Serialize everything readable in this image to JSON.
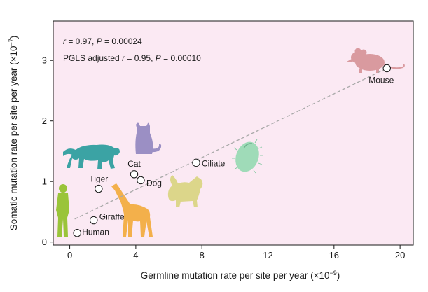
{
  "chart_data": {
    "type": "scatter",
    "title": "",
    "xlabel": "Germline mutation rate per site per year (×10",
    "xlabel_exp": "−9",
    "ylabel": "Somatic mutation rate per site per year (×10",
    "ylabel_exp": "−7",
    "xlim": [
      -1,
      20.8
    ],
    "ylim": [
      -0.05,
      3.65
    ],
    "xticks": [
      0,
      4,
      8,
      12,
      16,
      20
    ],
    "yticks": [
      0,
      1,
      2,
      3
    ],
    "xtick_labels": [
      "0",
      "4",
      "8",
      "12",
      "16",
      "20"
    ],
    "ytick_labels": [
      "0",
      "1",
      "2",
      "3"
    ],
    "points": [
      {
        "name": "Human",
        "x": 0.45,
        "y": 0.15
      },
      {
        "name": "Giraffe",
        "x": 1.45,
        "y": 0.36
      },
      {
        "name": "Tiger",
        "x": 1.75,
        "y": 0.88
      },
      {
        "name": "Cat",
        "x": 3.9,
        "y": 1.12
      },
      {
        "name": "Dog",
        "x": 4.3,
        "y": 1.02
      },
      {
        "name": "Ciliate",
        "x": 7.65,
        "y": 1.31
      },
      {
        "name": "Mouse",
        "x": 19.2,
        "y": 2.87
      }
    ],
    "fit_line": {
      "x": [
        0.3,
        19.2
      ],
      "y": [
        0.38,
        2.87
      ]
    },
    "stats": {
      "line1": {
        "r_label": "r",
        "r_rest": " = 0.97,  ",
        "p_label": "P",
        "p_rest": " = 0.00024"
      },
      "line2": {
        "prefix": "PGLS adjusted ",
        "r_label": "r",
        "r_rest": " = 0.95,  ",
        "p_label": "P",
        "p_rest": " = 0.00010"
      }
    },
    "colors": {
      "background": "#fbe9f3",
      "fit_line": "#a9a9a9",
      "mouse": "#d99a9f",
      "cat": "#9b8fc4",
      "tiger": "#3ba3a4",
      "human": "#9ac43a",
      "giraffe": "#f3b04b",
      "dog": "#dcd68a",
      "ciliate": "#9fdbb8"
    }
  }
}
